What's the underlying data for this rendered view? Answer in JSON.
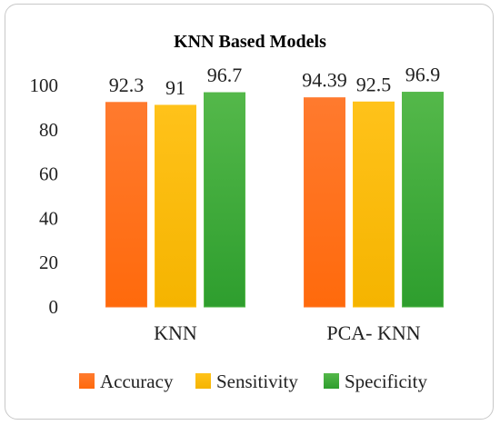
{
  "chart_data": {
    "type": "bar",
    "title": "KNN Based Models",
    "categories": [
      "KNN",
      "PCA- KNN"
    ],
    "series": [
      {
        "name": "Accuracy",
        "values": [
          92.3,
          94.39
        ],
        "labels": [
          "92.3",
          "94.39"
        ],
        "color": "#ff7a2e",
        "color_dark": "#ff6a0c"
      },
      {
        "name": "Sensitivity",
        "values": [
          91,
          92.5
        ],
        "labels": [
          "91",
          "92.5"
        ],
        "color": "#ffc21a",
        "color_dark": "#f5b400"
      },
      {
        "name": "Specificity",
        "values": [
          96.7,
          96.9
        ],
        "labels": [
          "96.7",
          "96.9"
        ],
        "color": "#54b84a",
        "color_dark": "#2e9e2e"
      }
    ],
    "ylim": [
      0,
      100
    ],
    "yticks": [
      0,
      20,
      40,
      60,
      80,
      100
    ],
    "xlabel": "",
    "ylabel": "",
    "grid": false,
    "legend": "bottom"
  }
}
